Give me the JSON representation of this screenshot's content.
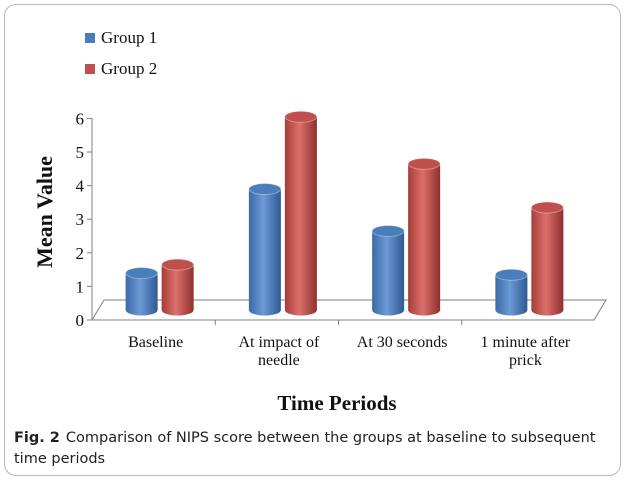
{
  "chart_data": {
    "type": "bar",
    "categories": [
      "Baseline",
      "At impact of needle",
      "At 30 seconds",
      "1 minute after prick"
    ],
    "category_lines": [
      [
        "Baseline"
      ],
      [
        "At impact of",
        "needle"
      ],
      [
        "At 30 seconds"
      ],
      [
        "1 minute after",
        "prick"
      ]
    ],
    "series": [
      {
        "name": "Group 1",
        "values": [
          1.1,
          3.6,
          2.35,
          1.05
        ],
        "color": "#4a7ebb"
      },
      {
        "name": "Group 2",
        "values": [
          1.35,
          5.75,
          4.35,
          3.05
        ],
        "color": "#c0504d"
      }
    ],
    "xlabel": "Time Periods",
    "ylabel": "Mean Value",
    "ylim": [
      0,
      6
    ],
    "yticks": [
      "0",
      "1",
      "2",
      "3",
      "4",
      "5",
      "6"
    ],
    "legend_position": "top-left",
    "grid": false,
    "style": "3d-cylinder"
  },
  "caption": {
    "label": "Fig. 2",
    "text": "Comparison of NIPS score between the groups at baseline to subsequent time periods"
  }
}
